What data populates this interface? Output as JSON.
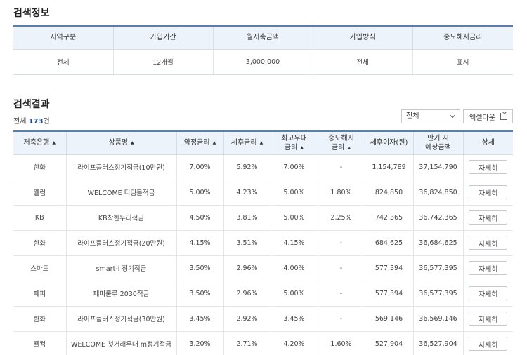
{
  "search_info": {
    "title": "검색정보",
    "headers": [
      "지역구분",
      "가입기간",
      "월저축금액",
      "가입방식",
      "중도해지금리"
    ],
    "values": [
      "전체",
      "12개월",
      "3,000,000",
      "전체",
      "표시"
    ]
  },
  "results": {
    "title": "검색결과",
    "count_prefix": "전체 ",
    "count_value": "173",
    "count_suffix": "건",
    "filter_value": "전체",
    "excel_label": "엑셀다운",
    "headers": {
      "bank": "저축은행",
      "product": "상품명",
      "rate": "약정금리",
      "after_tax": "세후금리",
      "max_rate_1": "최고우대",
      "max_rate_2": "금리",
      "early_1": "중도해지",
      "early_2": "금리",
      "interest": "세후이자(원)",
      "maturity_1": "만기 시",
      "maturity_2": "예상금액",
      "detail": "상세"
    },
    "detail_label": "자세히",
    "rows": [
      {
        "bank": "한화",
        "product": "라이프플러스정기적금(10만원)",
        "rate": "7.00%",
        "after_tax": "5.92%",
        "max_rate": "7.00%",
        "early": "-",
        "interest": "1,154,789",
        "maturity": "37,154,790"
      },
      {
        "bank": "웰컴",
        "product": "WELCOME 디딤돌적금",
        "rate": "5.00%",
        "after_tax": "4.23%",
        "max_rate": "5.00%",
        "early": "1.80%",
        "interest": "824,850",
        "maturity": "36,824,850"
      },
      {
        "bank": "KB",
        "product": "KB착한누리적금",
        "rate": "4.50%",
        "after_tax": "3.81%",
        "max_rate": "5.00%",
        "early": "2.25%",
        "interest": "742,365",
        "maturity": "36,742,365"
      },
      {
        "bank": "한화",
        "product": "라이프플러스정기적금(20만원)",
        "rate": "4.15%",
        "after_tax": "3.51%",
        "max_rate": "4.15%",
        "early": "-",
        "interest": "684,625",
        "maturity": "36,684,625"
      },
      {
        "bank": "스마트",
        "product": "smart-i 정기적금",
        "rate": "3.50%",
        "after_tax": "2.96%",
        "max_rate": "4.00%",
        "early": "-",
        "interest": "577,394",
        "maturity": "36,577,395"
      },
      {
        "bank": "페퍼",
        "product": "페퍼룰루 2030적금",
        "rate": "3.50%",
        "after_tax": "2.96%",
        "max_rate": "5.00%",
        "early": "-",
        "interest": "577,394",
        "maturity": "36,577,395"
      },
      {
        "bank": "한화",
        "product": "라이프플러스정기적금(30만원)",
        "rate": "3.45%",
        "after_tax": "2.92%",
        "max_rate": "3.45%",
        "early": "-",
        "interest": "569,146",
        "maturity": "36,569,146"
      },
      {
        "bank": "웰컴",
        "product": "WELCOME 첫거래우대 m정기적금",
        "rate": "3.20%",
        "after_tax": "2.71%",
        "max_rate": "4.20%",
        "early": "1.60%",
        "interest": "527,904",
        "maturity": "36,527,904"
      }
    ]
  }
}
